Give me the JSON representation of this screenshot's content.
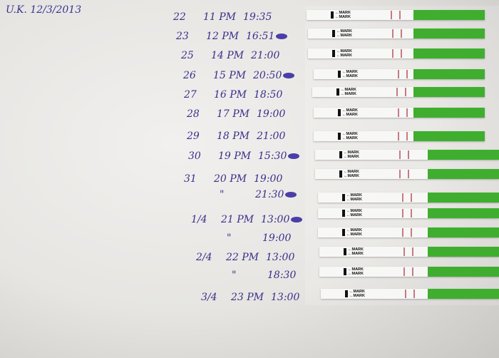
{
  "header": "U.K. 12/3/2013",
  "strip_label": "MARK",
  "colors": {
    "ink": "#3a2f8a",
    "strip_green": "#3fae2f",
    "test_line": "#c57a86"
  },
  "entries": [
    {
      "date": "22",
      "day": "11 PM",
      "time": "19:35",
      "circled": false
    },
    {
      "date": "23",
      "day": "12 PM",
      "time": "16:51",
      "circled": true
    },
    {
      "date": "25",
      "day": "14 PM",
      "time": "21:00",
      "circled": false
    },
    {
      "date": "26",
      "day": "15 PM",
      "time": "20:50",
      "circled": true
    },
    {
      "date": "27",
      "day": "16 PM",
      "time": "18:50",
      "circled": false
    },
    {
      "date": "28",
      "day": "17 PM",
      "time": "19:00",
      "circled": false
    },
    {
      "date": "29",
      "day": "18 PM",
      "time": "21:00",
      "circled": false
    },
    {
      "date": "30",
      "day": "19 PM",
      "time": "15:30",
      "circled": true
    },
    {
      "date": "31",
      "day": "20 PM",
      "time": "19:00",
      "circled": false
    },
    {
      "date": "",
      "day": "\"",
      "time": "21:30",
      "circled": true
    },
    {
      "date": "1/4",
      "day": "21 PM",
      "time": "13:00",
      "circled": true
    },
    {
      "date": "",
      "day": "\"",
      "time": "19:00",
      "circled": false
    },
    {
      "date": "2/4",
      "day": "22 PM",
      "time": "13:00",
      "circled": false
    },
    {
      "date": "",
      "day": "\"",
      "time": "18:30",
      "circled": false
    },
    {
      "date": "3/4",
      "day": "23 PM",
      "time": "13:00",
      "circled": false
    }
  ]
}
